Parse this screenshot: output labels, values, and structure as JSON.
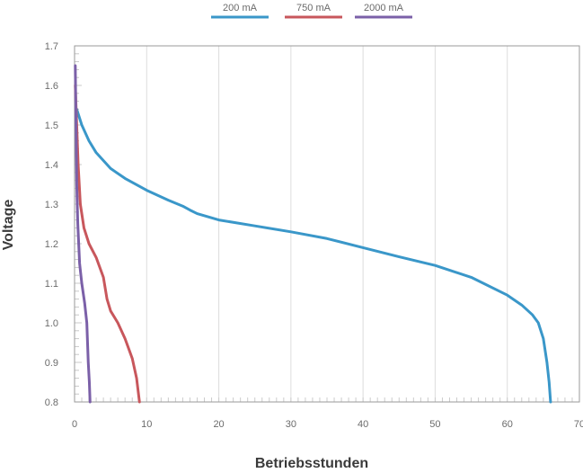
{
  "chart_data": {
    "type": "line",
    "title": "",
    "xlabel": "Betriebsstunden",
    "ylabel": "Voltage",
    "xlim": [
      0,
      70
    ],
    "ylim": [
      0.8,
      1.7
    ],
    "x_ticks": [
      0,
      10,
      20,
      30,
      40,
      50,
      60,
      70
    ],
    "y_ticks": [
      0.8,
      0.9,
      1.0,
      1.1,
      1.2,
      1.3,
      1.4,
      1.5,
      1.6,
      1.7
    ],
    "x_tick_labels": [
      "0",
      "10",
      "20",
      "30",
      "40",
      "50",
      "60",
      "70"
    ],
    "y_tick_labels": [
      "0.8",
      "0.9",
      "1.0",
      "1.1",
      "1.2",
      "1.3",
      "1.4",
      "1.5",
      "1.6",
      "1.7"
    ],
    "grid": true,
    "legend_position": "top-center",
    "series": [
      {
        "name": "200 mA",
        "color": "#3a97c9",
        "points": [
          [
            0.3,
            1.54
          ],
          [
            1,
            1.5
          ],
          [
            2,
            1.46
          ],
          [
            3,
            1.43
          ],
          [
            5,
            1.39
          ],
          [
            7,
            1.365
          ],
          [
            10,
            1.335
          ],
          [
            13,
            1.31
          ],
          [
            15,
            1.295
          ],
          [
            16,
            1.285
          ],
          [
            17,
            1.276
          ],
          [
            20,
            1.26
          ],
          [
            25,
            1.245
          ],
          [
            30,
            1.23
          ],
          [
            35,
            1.213
          ],
          [
            40,
            1.19
          ],
          [
            45,
            1.167
          ],
          [
            50,
            1.145
          ],
          [
            55,
            1.115
          ],
          [
            60,
            1.07
          ],
          [
            62,
            1.045
          ],
          [
            63.5,
            1.02
          ],
          [
            64.3,
            1.0
          ],
          [
            65,
            0.96
          ],
          [
            65.5,
            0.9
          ],
          [
            65.8,
            0.85
          ],
          [
            66,
            0.8
          ]
        ]
      },
      {
        "name": "750 mA",
        "color": "#c8575c",
        "points": [
          [
            0.1,
            1.6
          ],
          [
            0.3,
            1.5
          ],
          [
            0.5,
            1.4
          ],
          [
            0.8,
            1.3
          ],
          [
            1.3,
            1.24
          ],
          [
            2,
            1.2
          ],
          [
            3,
            1.165
          ],
          [
            4,
            1.115
          ],
          [
            4.5,
            1.06
          ],
          [
            5,
            1.03
          ],
          [
            6,
            1.0
          ],
          [
            7,
            0.96
          ],
          [
            8,
            0.91
          ],
          [
            8.6,
            0.86
          ],
          [
            9,
            0.8
          ]
        ]
      },
      {
        "name": "2000 mA",
        "color": "#7b60a8",
        "points": [
          [
            0.1,
            1.65
          ],
          [
            0.2,
            1.5
          ],
          [
            0.3,
            1.35
          ],
          [
            0.45,
            1.25
          ],
          [
            0.7,
            1.15
          ],
          [
            1,
            1.1
          ],
          [
            1.4,
            1.05
          ],
          [
            1.7,
            1.0
          ],
          [
            1.9,
            0.9
          ],
          [
            2.05,
            0.85
          ],
          [
            2.15,
            0.8
          ]
        ]
      }
    ]
  }
}
